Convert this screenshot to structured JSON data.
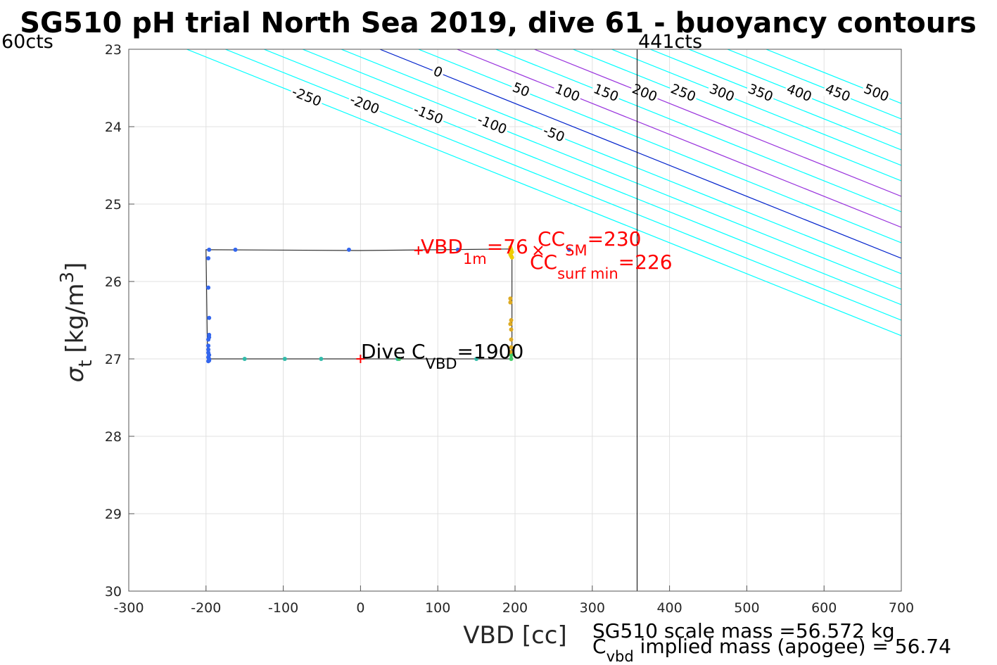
{
  "chart_data": {
    "type": "scatter",
    "title": "SG510 pH trial North Sea 2019, dive 61 - buoyancy contours",
    "xlabel": "VBD [cc]",
    "ylabel_main": "σ",
    "ylabel_sub": "t",
    "ylabel_unit": "[kg/m",
    "ylabel_sup": "3",
    "ylabel_close": "]",
    "xlim": [
      -300,
      700
    ],
    "ylim": [
      23,
      30
    ],
    "y_reversed": true,
    "grid": true,
    "xticks": [
      -300,
      -200,
      -100,
      0,
      100,
      200,
      300,
      400,
      500,
      600,
      700
    ],
    "yticks": [
      23,
      24,
      25,
      26,
      27,
      28,
      29,
      30
    ],
    "contour_levels": [
      -250,
      -200,
      -150,
      -100,
      -50,
      0,
      50,
      100,
      150,
      200,
      250,
      300,
      350,
      400,
      450,
      500
    ],
    "contour_slope_cc_per_sigma": 250,
    "contour_zero_x_at_sigma_23": 25,
    "colors": {
      "contour": "#00ffff",
      "zero_contour": "#0022cc",
      "highlight_contour": "#9933dd",
      "annotation": "#ff0000",
      "frame": "#555555",
      "grid": "#e0e0e0"
    },
    "highlight_levels": [
      100,
      200
    ],
    "contour_labels_top": [
      "-250",
      "-200",
      "-150",
      "-100",
      "-50",
      "0",
      "50",
      "100",
      "150",
      "200",
      "250",
      "300",
      "350",
      "400",
      "450",
      "500"
    ],
    "contour_labels_bottom": [
      "0",
      "50",
      "100",
      "150",
      "200",
      "250",
      "300",
      "350",
      "400",
      "450",
      "500"
    ],
    "vertical_line_x": 358,
    "vertical_line_label_left": "60cts",
    "vertical_line_label_right": "441cts",
    "dive_path_x": [
      -196,
      -200,
      -200,
      -198,
      196,
      196,
      196,
      196,
      194,
      196,
      0,
      -196
    ],
    "dive_path_y": [
      25.59,
      25.59,
      25.6,
      27.0,
      27.0,
      26.7,
      26.2,
      25.7,
      25.59,
      25.58,
      25.6,
      25.59
    ],
    "points_blue": {
      "x": [
        -196,
        -162,
        -15,
        126,
        270,
        -197,
        -197,
        -196,
        -196,
        -197,
        -197,
        -197,
        -197,
        -196,
        -197,
        -196,
        -196,
        -196,
        -197,
        -196
      ],
      "y": [
        25.59,
        25.59,
        25.59,
        25.59,
        25.59,
        25.7,
        26.08,
        26.47,
        26.69,
        26.75,
        26.83,
        26.88,
        26.92,
        26.95,
        26.98,
        27.0,
        27.01,
        27.02,
        27.03,
        26.72
      ],
      "color": "#3366ee"
    },
    "points_teal": {
      "x": [
        -150,
        -98,
        -51,
        48,
        150
      ],
      "y": [
        27.0,
        27.0,
        27.0,
        27.0,
        27.0
      ],
      "color": "#33bbaa"
    },
    "points_green": {
      "x": [
        50,
        195,
        195
      ],
      "y": [
        27.0,
        26.95,
        27.0
      ],
      "color": "#44cc66"
    },
    "points_orange": {
      "x": [
        194,
        194,
        195,
        194,
        195,
        195,
        195,
        194,
        195
      ],
      "y": [
        26.22,
        26.27,
        26.5,
        26.55,
        26.62,
        26.75,
        26.85,
        26.91,
        25.67
      ],
      "color": "#ddaa22"
    },
    "points_yellow": {
      "x": [
        194,
        195,
        196,
        194,
        196
      ],
      "y": [
        25.56,
        25.59,
        25.62,
        25.65,
        25.69
      ],
      "color": "#eecc00"
    },
    "markers": {
      "vbd_1m": {
        "x": 75,
        "y": 25.6,
        "symbol": "+"
      },
      "cc_sm": {
        "x": 230,
        "y": 25.6,
        "symbol": "x"
      },
      "dive_cvbd": {
        "x": 0,
        "y": 27.0,
        "symbol": "+"
      }
    },
    "annotations": {
      "vbd_main": "VBD",
      "vbd_sub": "1m",
      "vbd_value": "=76",
      "ccsm_main": "CC",
      "ccsm_sub": "SM",
      "ccsm_value": "=230",
      "ccsurf_main": "CC",
      "ccsurf_sub": "surf min",
      "ccsurf_value": "=226",
      "dive_main": "Dive C",
      "dive_sub": "VBD",
      "dive_value": "=1900"
    },
    "footer_line1": "SG510 scale mass =56.572 kg",
    "footer_line2_main": "C",
    "footer_line2_sub": "vbd",
    "footer_line2_rest": " implied mass (apogee) = 56.74"
  }
}
